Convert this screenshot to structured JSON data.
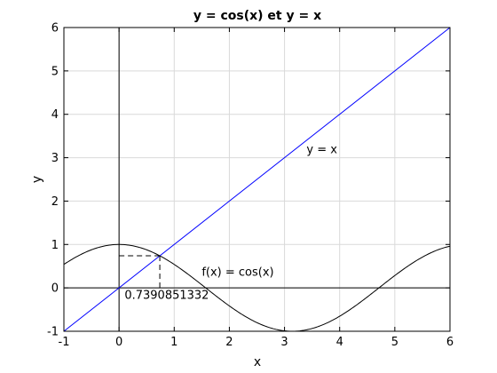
{
  "chart_data": {
    "type": "line",
    "title": "y = cos(x) et y = x",
    "xlabel": "x",
    "ylabel": "y",
    "xlim": [
      -1,
      6
    ],
    "ylim": [
      -1,
      6
    ],
    "xticks": [
      "-1",
      "0",
      "1",
      "2",
      "3",
      "4",
      "5",
      "6"
    ],
    "yticks": [
      "-1",
      "0",
      "1",
      "2",
      "3",
      "4",
      "5",
      "6"
    ],
    "grid": true,
    "series": [
      {
        "function": "cos",
        "color": "#000000",
        "x": [
          -1,
          -0.5,
          0,
          0.5,
          1,
          1.5,
          2,
          2.5,
          3,
          3.14,
          3.5,
          4,
          4.5,
          5,
          5.5,
          6
        ],
        "y": [
          0.54,
          0.878,
          1,
          0.878,
          0.54,
          0.071,
          -0.416,
          -0.801,
          -0.99,
          -1,
          -0.936,
          -0.654,
          -0.211,
          0.284,
          0.709,
          0.96
        ]
      },
      {
        "function": "identity",
        "color": "#0000ff",
        "x": [
          -1,
          6
        ],
        "y": [
          -1,
          6
        ]
      }
    ],
    "annotations": [
      {
        "text": "y = x",
        "x": 3.4,
        "y": 3.1
      },
      {
        "text": "f(x) = cos(x)",
        "x": 1.5,
        "y": 0.28
      },
      {
        "text": "0.7390851332",
        "x": 0.1,
        "y": -0.25
      }
    ],
    "intersection": {
      "x": 0.7390851332,
      "y": 0.7390851332
    },
    "reference_lines": [
      "x = 0",
      "y = 0"
    ]
  }
}
